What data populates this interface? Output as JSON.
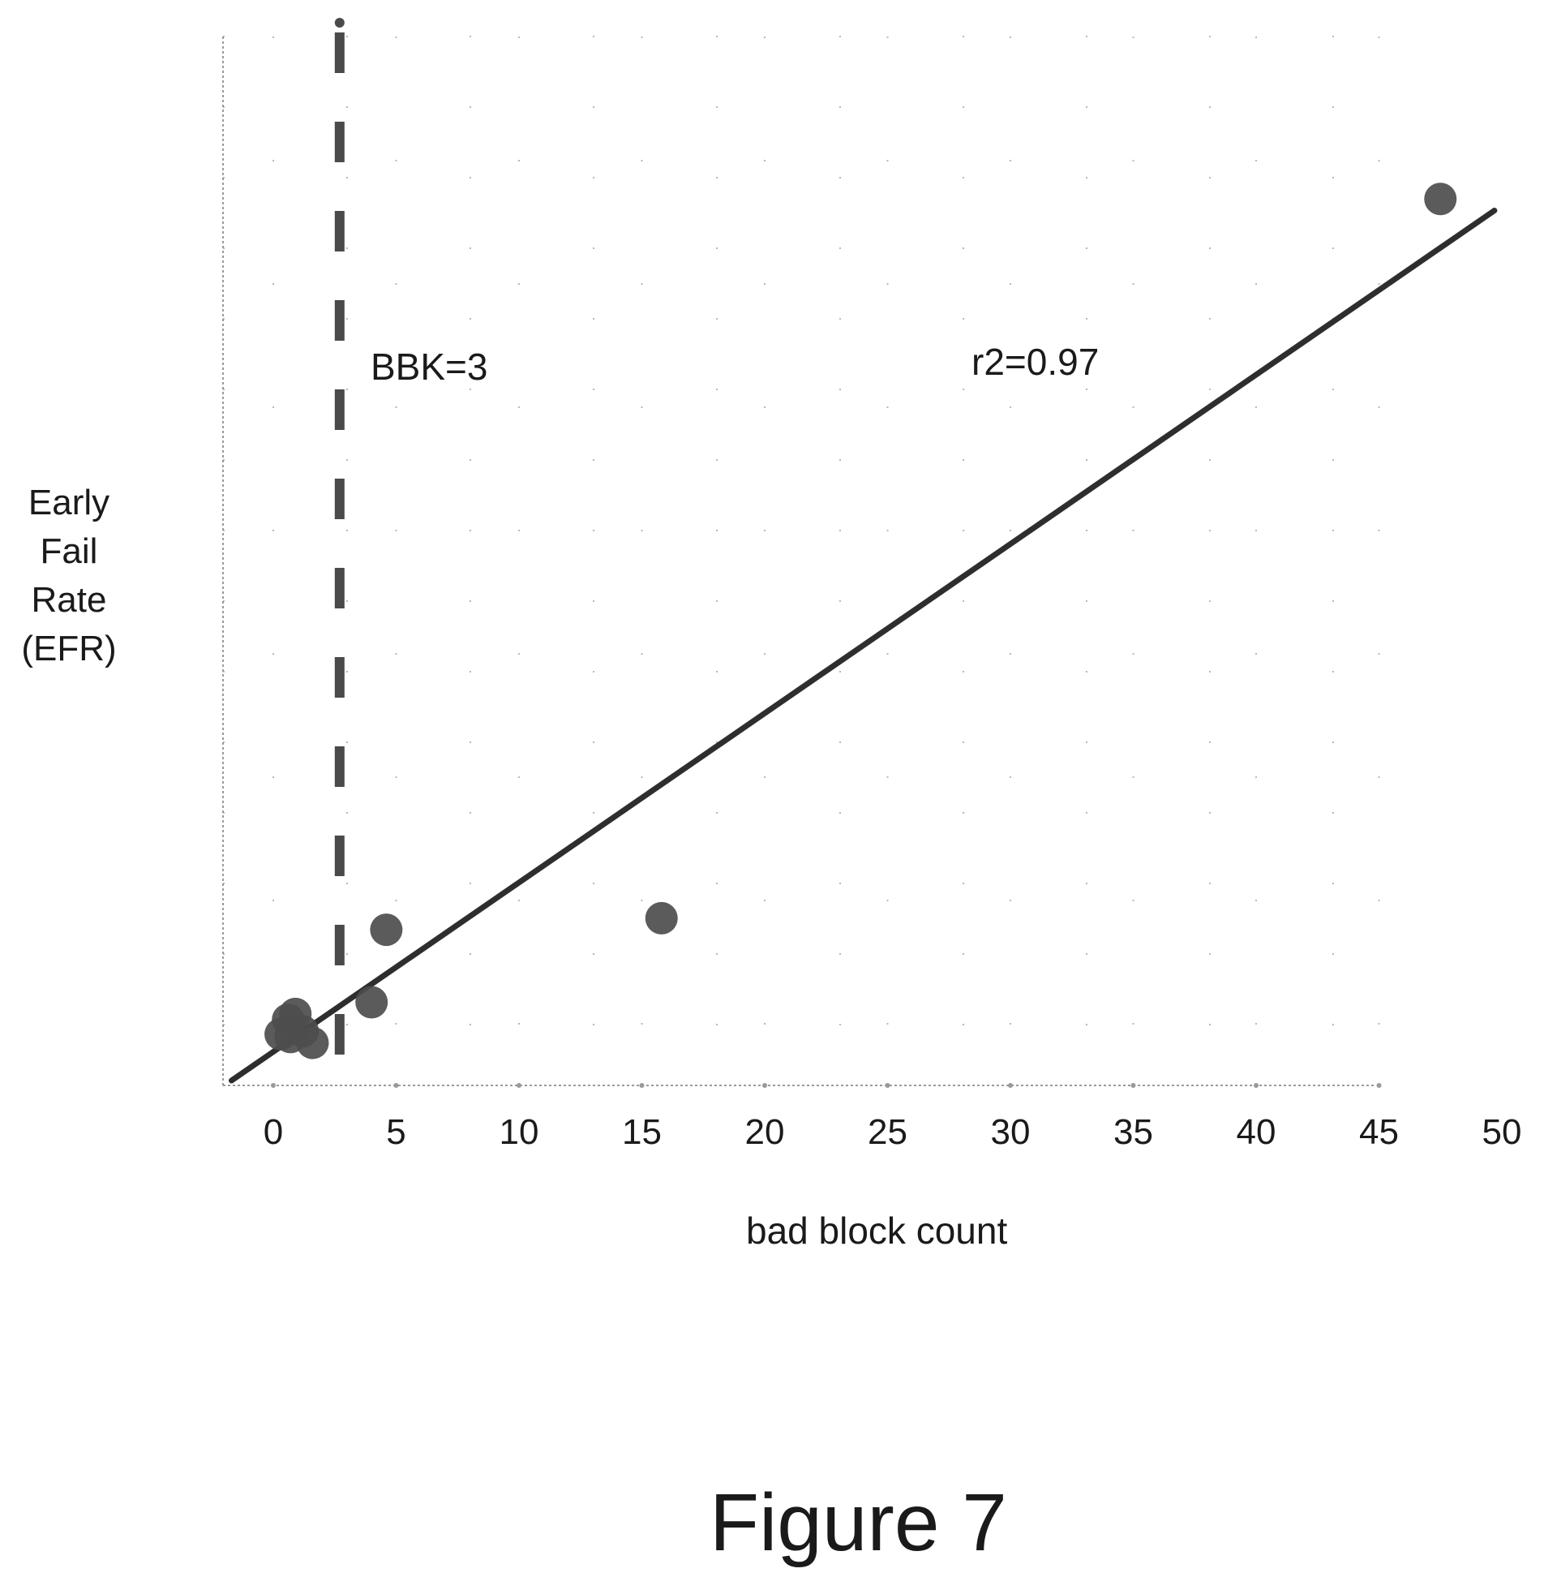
{
  "chart_data": {
    "type": "scatter",
    "title": "",
    "xlabel": "bad block count",
    "ylabel_lines": [
      "Early",
      "Fail",
      "Rate",
      "(EFR)"
    ],
    "xlim": [
      0,
      50
    ],
    "ylim": [
      0,
      15
    ],
    "x_ticks": [
      0,
      5,
      10,
      15,
      20,
      25,
      30,
      35,
      40,
      45,
      50
    ],
    "grid": true,
    "legend": "none",
    "points": [
      {
        "x": 0.3,
        "y": 0.1
      },
      {
        "x": 0.6,
        "y": 0.35
      },
      {
        "x": 0.9,
        "y": 0.45
      },
      {
        "x": 0.7,
        "y": 0.05
      },
      {
        "x": 1.2,
        "y": 0.15
      },
      {
        "x": 1.6,
        "y": -0.05
      },
      {
        "x": 4.0,
        "y": 0.65
      },
      {
        "x": 4.6,
        "y": 1.9
      },
      {
        "x": 15.8,
        "y": 2.1
      },
      {
        "x": 47.5,
        "y": 14.5
      }
    ],
    "fit_line": {
      "from": [
        -1.7,
        -0.7
      ],
      "to": [
        49.7,
        14.3
      ]
    },
    "threshold_line": {
      "x": 2.7,
      "label": "BBK=3"
    },
    "annotation": "r2=0.97"
  },
  "figure_label": "Figure 7"
}
